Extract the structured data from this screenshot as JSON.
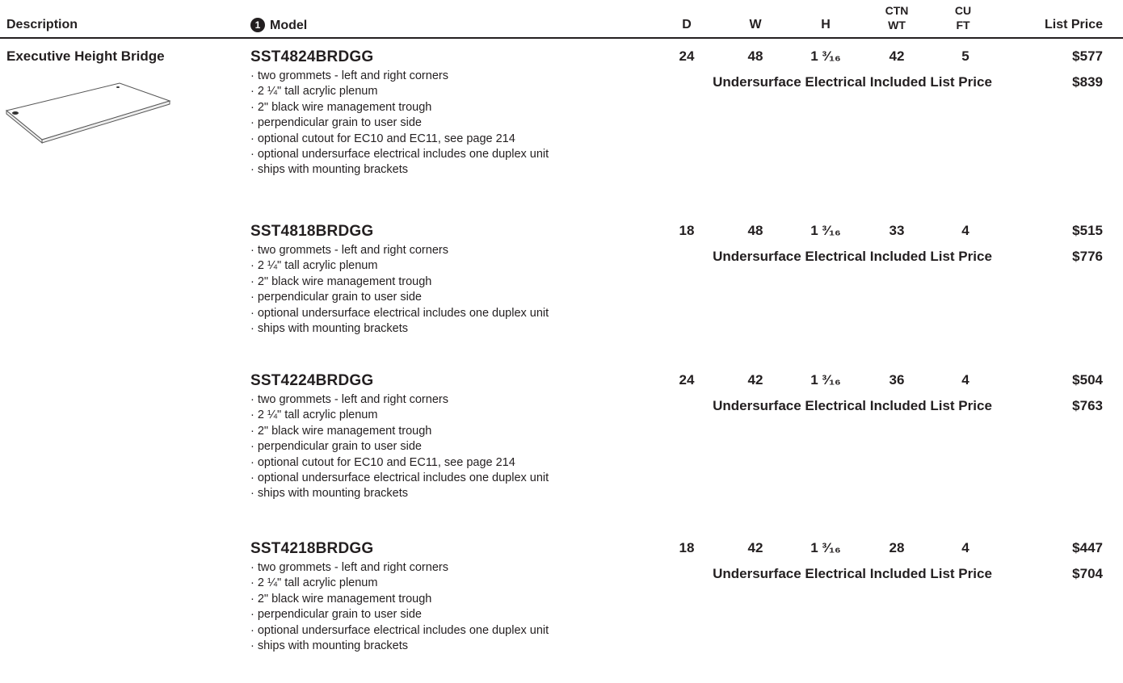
{
  "header": {
    "description": "Description",
    "model_badge": "1",
    "model": "Model",
    "d": "D",
    "w": "W",
    "h": "H",
    "ctn_wt": "CTN\nWT",
    "cu_ft": "CU\nFT",
    "list_price": "List Price"
  },
  "description": "Executive Height Bridge",
  "items": [
    {
      "model": "SST4824BRDGG",
      "d": 24,
      "w": 48,
      "h": "1 ³⁄₁₆",
      "ctn_wt": 42,
      "cu_ft": 5,
      "price": "$577",
      "electrical_label": "Undersurface Electrical Included List Price",
      "electrical_price": "$839",
      "features": [
        "· two grommets - left and right corners",
        "· 2 ¼\" tall acrylic plenum",
        "· 2\" black wire management trough",
        "· perpendicular grain to user side",
        "· optional cutout for EC10 and EC11, see page 214",
        "· optional undersurface electrical includes one duplex unit",
        "· ships with mounting brackets"
      ]
    },
    {
      "model": "SST4818BRDGG",
      "d": 18,
      "w": 48,
      "h": "1 ³⁄₁₆",
      "ctn_wt": 33,
      "cu_ft": 4,
      "price": "$515",
      "electrical_label": "Undersurface Electrical Included List Price",
      "electrical_price": "$776",
      "features": [
        "· two grommets - left and right corners",
        "· 2 ¼\" tall acrylic plenum",
        "· 2\" black wire management trough",
        "· perpendicular grain to user side",
        "· optional undersurface electrical includes one duplex unit",
        "· ships with mounting brackets"
      ]
    },
    {
      "model": "SST4224BRDGG",
      "d": 24,
      "w": 42,
      "h": "1 ³⁄₁₆",
      "ctn_wt": 36,
      "cu_ft": 4,
      "price": "$504",
      "electrical_label": "Undersurface Electrical Included List Price",
      "electrical_price": "$763",
      "features": [
        "· two grommets - left and right corners",
        "· 2 ¼\" tall acrylic plenum",
        "· 2\" black wire management trough",
        "· perpendicular grain to user side",
        "· optional cutout for EC10 and EC11, see page 214",
        "· optional undersurface electrical includes one duplex unit",
        "· ships with mounting brackets"
      ]
    },
    {
      "model": "SST4218BRDGG",
      "d": 18,
      "w": 42,
      "h": "1 ³⁄₁₆",
      "ctn_wt": 28,
      "cu_ft": 4,
      "price": "$447",
      "electrical_label": "Undersurface Electrical Included List Price",
      "electrical_price": "$704",
      "features": [
        "· two grommets - left and right corners",
        "· 2 ¼\" tall acrylic plenum",
        "· 2\" black wire management trough",
        "· perpendicular grain to user side",
        "· optional undersurface electrical includes one duplex unit",
        "· ships with mounting brackets"
      ]
    }
  ]
}
